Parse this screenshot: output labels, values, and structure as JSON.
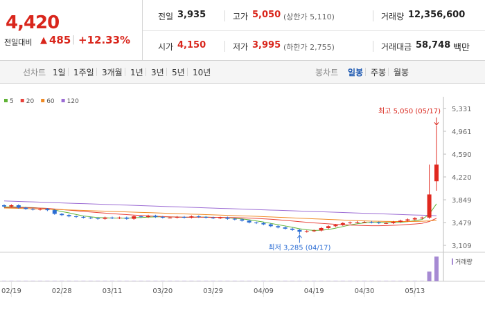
{
  "header": {
    "price": "4,420",
    "change_label": "전일대비",
    "change": "485",
    "change_rate": "+12.33%"
  },
  "summary": {
    "rows": [
      [
        {
          "label": "전일",
          "value": "3,935"
        },
        {
          "label": "고가",
          "value": "5,050",
          "note": "(상한가 5,110)",
          "color": "#d9261c"
        },
        {
          "label": "거래량",
          "value": "12,356,600"
        }
      ],
      [
        {
          "label": "시가",
          "value": "4,150",
          "color": "#d9261c"
        },
        {
          "label": "저가",
          "value": "3,995",
          "note": "(하한가 2,755)",
          "color": "#d9261c"
        },
        {
          "label": "거래대금",
          "value": "58,748",
          "unit": "백만"
        }
      ]
    ]
  },
  "tabs": {
    "line_chart": {
      "label": "선차트",
      "options": [
        "1일",
        "1주일",
        "3개월",
        "1년",
        "3년",
        "5년",
        "10년"
      ]
    },
    "candle_chart": {
      "label": "봉차트",
      "options": [
        "일봉",
        "주봉",
        "월봉"
      ],
      "selected": 0
    }
  },
  "chart_data": {
    "type": "candlestick",
    "categories": [
      null,
      "02/19",
      null,
      null,
      null,
      null,
      null,
      null,
      "02/28",
      null,
      null,
      null,
      null,
      null,
      null,
      "03/11",
      null,
      null,
      null,
      null,
      null,
      null,
      "03/20",
      null,
      null,
      null,
      null,
      null,
      null,
      "03/29",
      null,
      null,
      null,
      null,
      null,
      null,
      "04/09",
      null,
      null,
      null,
      null,
      null,
      null,
      "04/19",
      null,
      null,
      null,
      null,
      null,
      null,
      "04/30",
      null,
      null,
      null,
      null,
      null,
      null,
      "05/13",
      null,
      null,
      null
    ],
    "open": [
      3760,
      3740,
      3760,
      3720,
      3700,
      3690,
      3700,
      3680,
      3620,
      3600,
      3580,
      3570,
      3560,
      3550,
      3540,
      3560,
      3550,
      3560,
      3540,
      3580,
      3570,
      3590,
      3570,
      3560,
      3560,
      3570,
      3560,
      3580,
      3570,
      3560,
      3550,
      3560,
      3540,
      3530,
      3510,
      3480,
      3470,
      3450,
      3420,
      3400,
      3380,
      3360,
      3330,
      3340,
      3350,
      3390,
      3420,
      3440,
      3470,
      3480,
      3490,
      3490,
      3480,
      3470,
      3470,
      3490,
      3510,
      3530,
      3550,
      3560,
      4150
    ],
    "high": [
      3775,
      3775,
      3775,
      3735,
      3715,
      3715,
      3715,
      3695,
      3635,
      3615,
      3595,
      3585,
      3575,
      3565,
      3575,
      3575,
      3575,
      3575,
      3595,
      3595,
      3605,
      3605,
      3585,
      3575,
      3585,
      3585,
      3595,
      3595,
      3585,
      3575,
      3575,
      3575,
      3555,
      3545,
      3525,
      3495,
      3485,
      3465,
      3435,
      3415,
      3395,
      3375,
      3355,
      3365,
      3405,
      3435,
      3455,
      3485,
      3495,
      3505,
      3505,
      3505,
      3495,
      3485,
      3505,
      3525,
      3545,
      3565,
      3575,
      4420,
      5050
    ],
    "low": [
      3725,
      3725,
      3705,
      3685,
      3675,
      3675,
      3665,
      3605,
      3585,
      3565,
      3555,
      3545,
      3535,
      3525,
      3525,
      3535,
      3535,
      3525,
      3525,
      3555,
      3555,
      3555,
      3545,
      3545,
      3545,
      3545,
      3545,
      3555,
      3545,
      3535,
      3535,
      3525,
      3515,
      3495,
      3465,
      3455,
      3435,
      3405,
      3385,
      3365,
      3345,
      3285,
      3315,
      3325,
      3335,
      3375,
      3405,
      3425,
      3455,
      3465,
      3475,
      3465,
      3455,
      3455,
      3455,
      3475,
      3495,
      3515,
      3535,
      3540,
      3995
    ],
    "close": [
      3740,
      3760,
      3720,
      3700,
      3690,
      3700,
      3680,
      3620,
      3600,
      3580,
      3570,
      3560,
      3550,
      3540,
      3560,
      3550,
      3560,
      3540,
      3580,
      3570,
      3590,
      3570,
      3560,
      3560,
      3570,
      3560,
      3580,
      3570,
      3560,
      3550,
      3560,
      3540,
      3530,
      3510,
      3480,
      3470,
      3450,
      3420,
      3400,
      3380,
      3360,
      3330,
      3340,
      3350,
      3390,
      3420,
      3440,
      3470,
      3480,
      3490,
      3490,
      3480,
      3470,
      3470,
      3490,
      3510,
      3530,
      3550,
      3560,
      3935,
      4420
    ],
    "up_color": "#e0281f",
    "down_color": "#2b6dd4",
    "series": [
      {
        "name": "5",
        "color": "#5fb336",
        "values": [
          3730,
          3735,
          3730,
          3725,
          3722,
          3714,
          3710,
          3682,
          3658,
          3636,
          3610,
          3586,
          3572,
          3560,
          3556,
          3552,
          3552,
          3550,
          3558,
          3560,
          3568,
          3570,
          3574,
          3570,
          3570,
          3564,
          3566,
          3568,
          3568,
          3564,
          3564,
          3556,
          3548,
          3538,
          3524,
          3506,
          3488,
          3466,
          3444,
          3424,
          3402,
          3378,
          3362,
          3352,
          3354,
          3366,
          3388,
          3414,
          3440,
          3460,
          3474,
          3482,
          3482,
          3478,
          3480,
          3484,
          3494,
          3510,
          3528,
          3617,
          3783
        ]
      },
      {
        "name": "20",
        "color": "#e8423a",
        "values": [
          3720,
          3722,
          3722,
          3720,
          3718,
          3714,
          3710,
          3700,
          3690,
          3680,
          3670,
          3660,
          3650,
          3640,
          3632,
          3624,
          3616,
          3608,
          3600,
          3594,
          3588,
          3582,
          3576,
          3572,
          3568,
          3566,
          3566,
          3566,
          3565,
          3564,
          3563,
          3561,
          3559,
          3556,
          3552,
          3546,
          3540,
          3532,
          3524,
          3514,
          3504,
          3494,
          3484,
          3474,
          3466,
          3458,
          3450,
          3444,
          3438,
          3434,
          3430,
          3428,
          3428,
          3430,
          3434,
          3440,
          3448,
          3456,
          3466,
          3496,
          3548
        ]
      },
      {
        "name": "60",
        "color": "#f08a24",
        "values": [
          3715,
          3712,
          3709,
          3706,
          3703,
          3700,
          3696,
          3692,
          3688,
          3684,
          3680,
          3676,
          3672,
          3668,
          3664,
          3660,
          3656,
          3652,
          3648,
          3644,
          3640,
          3636,
          3632,
          3628,
          3624,
          3620,
          3616,
          3612,
          3608,
          3604,
          3600,
          3596,
          3592,
          3588,
          3584,
          3580,
          3575,
          3570,
          3565,
          3560,
          3555,
          3550,
          3545,
          3540,
          3535,
          3530,
          3525,
          3520,
          3515,
          3510,
          3506,
          3502,
          3500,
          3498,
          3496,
          3496,
          3496,
          3498,
          3500,
          3506,
          3516
        ]
      },
      {
        "name": "120",
        "color": "#9c6cd4",
        "values": [
          3830,
          3826,
          3822,
          3818,
          3814,
          3810,
          3806,
          3802,
          3798,
          3794,
          3790,
          3786,
          3782,
          3778,
          3774,
          3770,
          3766,
          3762,
          3758,
          3754,
          3750,
          3746,
          3742,
          3738,
          3734,
          3730,
          3726,
          3722,
          3718,
          3714,
          3710,
          3706,
          3702,
          3698,
          3694,
          3690,
          3686,
          3682,
          3678,
          3674,
          3670,
          3666,
          3662,
          3658,
          3654,
          3650,
          3646,
          3642,
          3638,
          3634,
          3630,
          3626,
          3622,
          3618,
          3614,
          3610,
          3606,
          3602,
          3598,
          3594,
          3590
        ]
      }
    ],
    "volume": {
      "name": "거래량",
      "color": "#a68ad3",
      "ylim": [
        0,
        12800000
      ],
      "values": [
        150000,
        150000,
        150000,
        150000,
        150000,
        150000,
        150000,
        150000,
        150000,
        150000,
        150000,
        150000,
        150000,
        150000,
        150000,
        150000,
        150000,
        150000,
        150000,
        150000,
        150000,
        150000,
        150000,
        150000,
        150000,
        150000,
        150000,
        150000,
        150000,
        150000,
        150000,
        150000,
        150000,
        150000,
        150000,
        150000,
        150000,
        150000,
        150000,
        150000,
        150000,
        150000,
        150000,
        150000,
        150000,
        150000,
        150000,
        150000,
        150000,
        150000,
        150000,
        150000,
        150000,
        150000,
        150000,
        150000,
        150000,
        150000,
        150000,
        4900000,
        12356600
      ]
    },
    "ylim": [
      3109,
      5331
    ],
    "yticks": [
      {
        "value": 3109,
        "label": "3,109"
      },
      {
        "value": 3479,
        "label": "3,479"
      },
      {
        "value": 3849,
        "label": "3,849"
      },
      {
        "value": 4220,
        "label": "4,220"
      },
      {
        "value": 4590,
        "label": "4,590"
      },
      {
        "value": 4961,
        "label": "4,961"
      },
      {
        "value": 5331,
        "label": "5,331"
      }
    ],
    "annotations": {
      "high": "최고 5,050 (05/17)",
      "low": "최저 3,285 (04/17)"
    }
  }
}
